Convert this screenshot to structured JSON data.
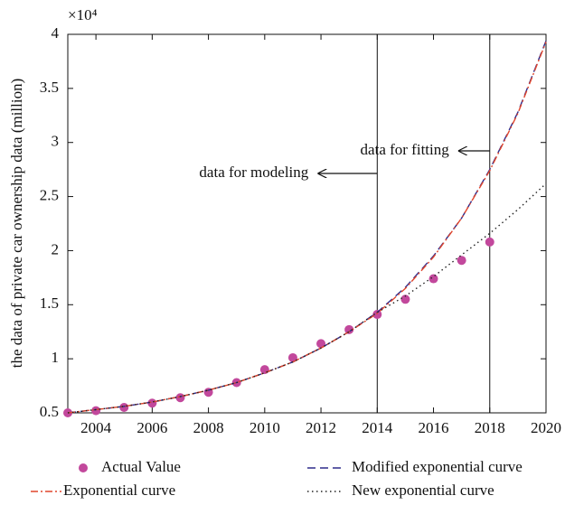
{
  "chart_data": {
    "type": "line",
    "y_label": "the data of private car ownership data (million)",
    "y_multiplier": "×10⁴",
    "x": [
      2003,
      2004,
      2005,
      2006,
      2007,
      2008,
      2009,
      2010,
      2011,
      2012,
      2013,
      2014,
      2015,
      2016,
      2017,
      2018,
      2019,
      2020
    ],
    "xlim": [
      2003,
      2020
    ],
    "xticks": [
      2004,
      2006,
      2008,
      2010,
      2012,
      2014,
      2016,
      2018,
      2020
    ],
    "ylim": [
      0.5,
      4
    ],
    "yticks": [
      0.5,
      1,
      1.5,
      2,
      2.5,
      3,
      3.5,
      4
    ],
    "vlines": [
      2014,
      2018
    ],
    "annotations": [
      {
        "text": "data for modeling",
        "x": 2014
      },
      {
        "text": "data for fitting",
        "x": 2018
      }
    ],
    "series": [
      {
        "name": "Actual Value",
        "color": "#c2489c",
        "line_style": "none",
        "marker": "circle",
        "values": [
          0.5,
          0.52,
          0.55,
          0.59,
          0.64,
          0.69,
          0.78,
          0.9,
          1.01,
          1.14,
          1.27,
          1.41,
          1.55,
          1.74,
          1.91,
          2.08,
          null,
          null
        ]
      },
      {
        "name": "Modified exponential curve",
        "color": "#2e2c8c",
        "line_style": "dash",
        "marker": "none",
        "values": [
          0.5,
          0.53,
          0.56,
          0.6,
          0.65,
          0.71,
          0.78,
          0.87,
          0.97,
          1.1,
          1.25,
          1.43,
          1.66,
          1.95,
          2.3,
          2.75,
          3.28,
          3.94
        ]
      },
      {
        "name": "Exponential curve",
        "color": "#e0452c",
        "line_style": "dashdot",
        "marker": "none",
        "values": [
          0.5,
          0.53,
          0.56,
          0.6,
          0.65,
          0.71,
          0.78,
          0.87,
          0.97,
          1.1,
          1.25,
          1.42,
          1.65,
          1.94,
          2.3,
          2.74,
          3.27,
          3.93
        ]
      },
      {
        "name": "New exponential curve",
        "color": "#222222",
        "line_style": "dot",
        "marker": "none",
        "values": [
          0.5,
          0.53,
          0.56,
          0.6,
          0.65,
          0.71,
          0.78,
          0.87,
          0.97,
          1.1,
          1.25,
          1.43,
          1.58,
          1.76,
          1.96,
          2.16,
          2.38,
          2.62
        ]
      }
    ]
  }
}
